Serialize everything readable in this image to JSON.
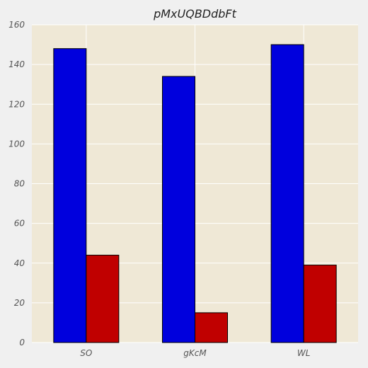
{
  "chart_data": {
    "type": "bar",
    "title": "pMxUQBDdbFt",
    "xlabel": "",
    "ylabel": "",
    "categories": [
      "SO",
      "gKcM",
      "WL"
    ],
    "series": [
      {
        "values": [
          148,
          134,
          150
        ],
        "color": "#0000dd"
      },
      {
        "values": [
          44,
          15,
          39
        ],
        "color": "#c00000"
      }
    ],
    "ylim": [
      0,
      160
    ],
    "yticks": [
      "0",
      "20",
      "40",
      "60",
      "80",
      "100",
      "120",
      "140",
      "160"
    ],
    "grid": true,
    "legend": "none",
    "plot_background": "#efe8d6",
    "figure_background": "#f0f0f0",
    "grid_color": "#ffffff"
  }
}
